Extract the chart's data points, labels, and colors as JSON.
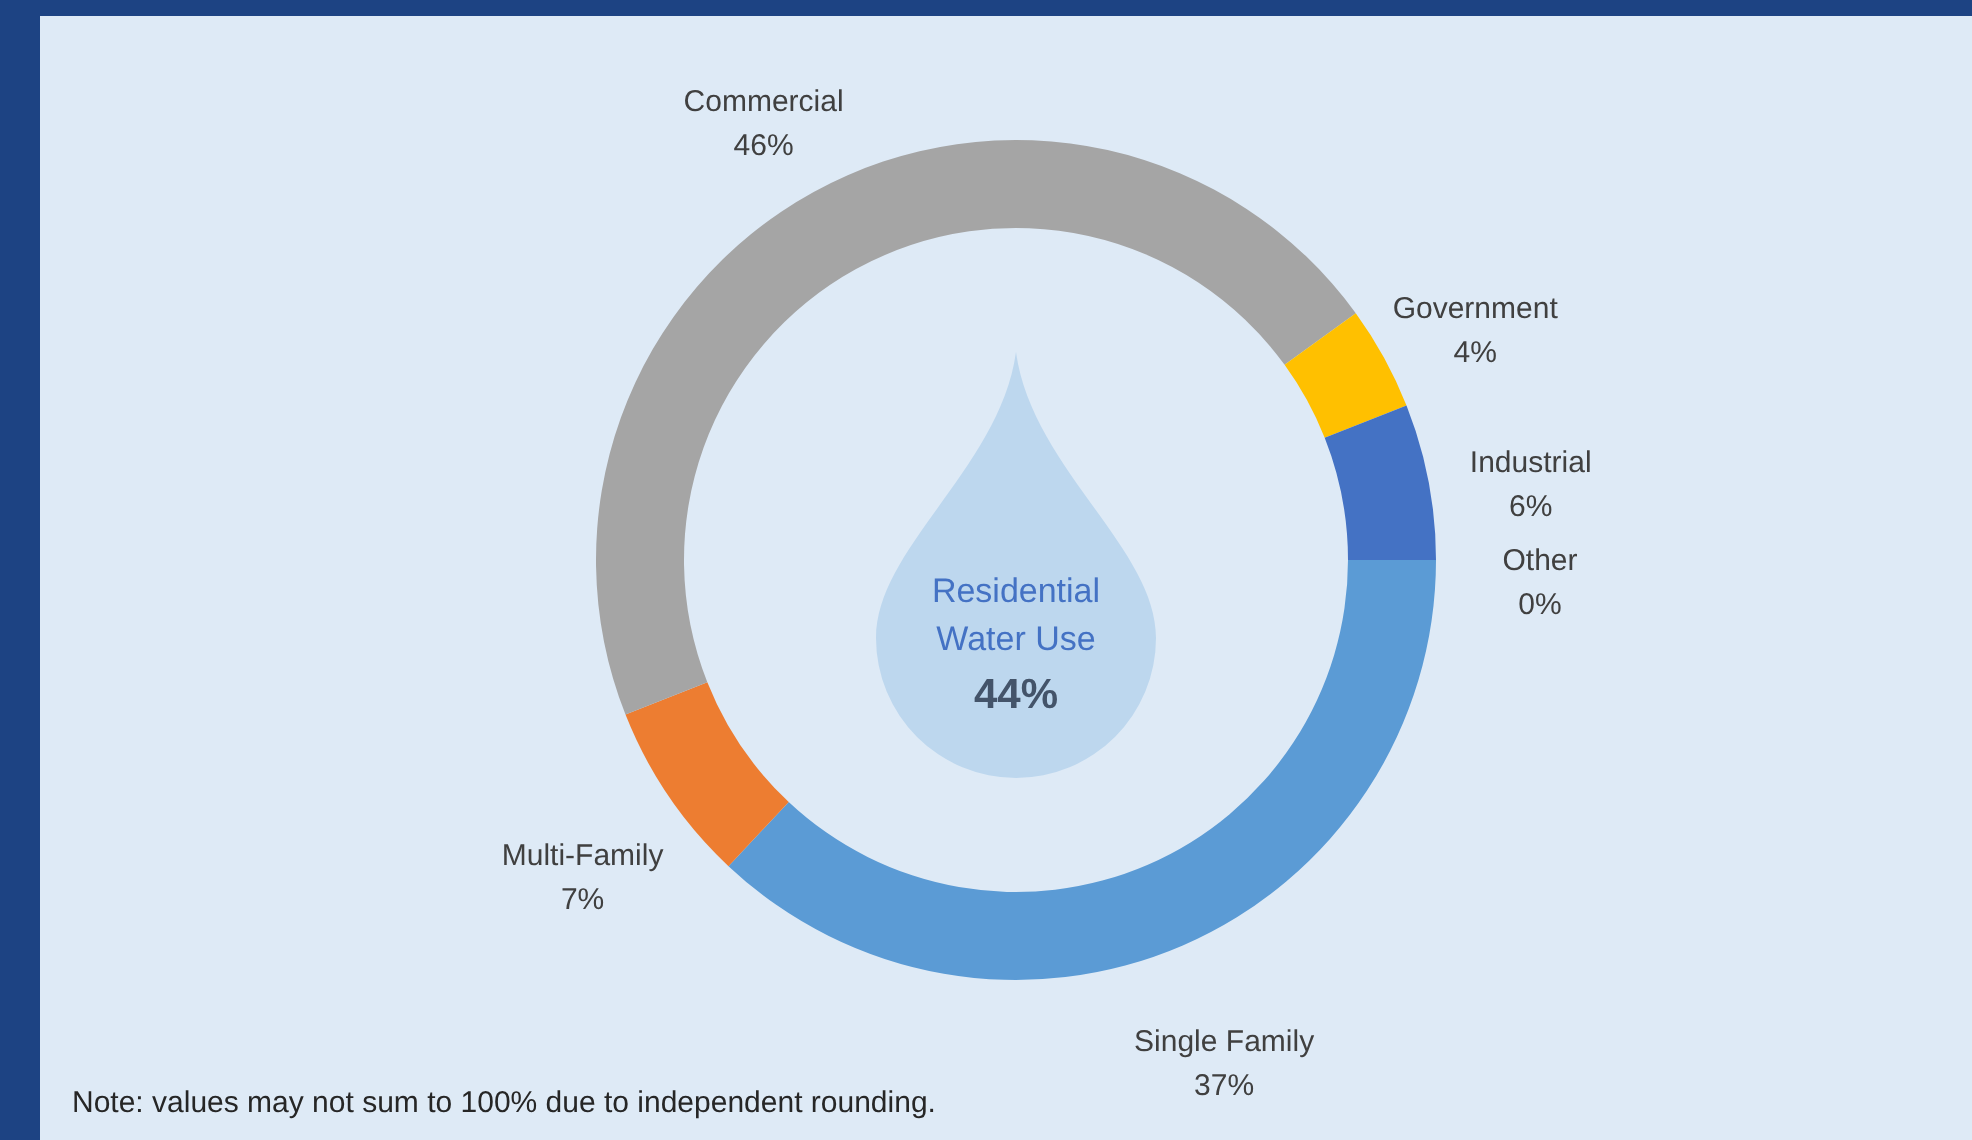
{
  "chart_data": {
    "type": "donut",
    "categories": [
      "Single Family",
      "Multi-Family",
      "Commercial",
      "Government",
      "Industrial",
      "Other"
    ],
    "values": [
      37,
      7,
      46,
      4,
      6,
      0
    ],
    "colors": [
      "#5b9bd5",
      "#ed7d31",
      "#a5a5a5",
      "#ffc000",
      "#4472c4",
      "#70ad47"
    ],
    "value_labels": [
      "37%",
      "7%",
      "46%",
      "4%",
      "6%",
      "0%"
    ],
    "annotations": [
      "Residential Water Use",
      "44%",
      "Note: values may not sum to 100% due to independent rounding."
    ]
  }
}
